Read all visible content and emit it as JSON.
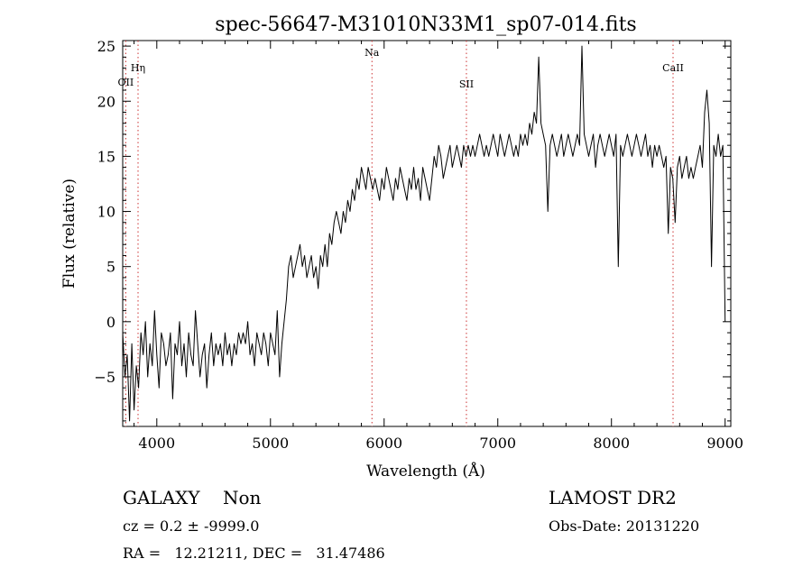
{
  "chart_data": {
    "type": "line",
    "title": "spec-56647-M31010N33M1_sp07-014.fits",
    "xlabel": "Wavelength (Å)",
    "ylabel": "Flux (relative)",
    "xlim": [
      3700,
      9050
    ],
    "ylim": [
      -9.5,
      25.5
    ],
    "x_ticks": [
      4000,
      5000,
      6000,
      7000,
      8000,
      9000
    ],
    "y_ticks": [
      -5,
      0,
      5,
      10,
      15,
      20,
      25
    ],
    "grid": false,
    "line_color": "#000000",
    "marker_color": "#cc3333",
    "line_markers": [
      {
        "label": "OII",
        "x": 3727
      },
      {
        "label": "Hη",
        "x": 3835
      },
      {
        "label": "Na",
        "x": 5893
      },
      {
        "label": "SII",
        "x": 6724
      },
      {
        "label": "CaII",
        "x": 8542
      }
    ],
    "series": [
      {
        "x": [
          3700,
          3720,
          3740,
          3760,
          3780,
          3800,
          3820,
          3840,
          3860,
          3880,
          3900,
          3920,
          3940,
          3960,
          3980,
          4000,
          4020,
          4040,
          4060,
          4080,
          4100,
          4120,
          4140,
          4160,
          4180,
          4200,
          4220,
          4240,
          4260,
          4280,
          4300,
          4320,
          4340,
          4360,
          4380,
          4400,
          4420,
          4440,
          4460,
          4480,
          4500,
          4520,
          4540,
          4560,
          4580,
          4600,
          4620,
          4640,
          4660,
          4680,
          4700,
          4720,
          4740,
          4760,
          4780,
          4800,
          4820,
          4840,
          4860,
          4880,
          4900,
          4920,
          4940,
          4960,
          4980,
          5000,
          5020,
          5040,
          5060,
          5080,
          5100,
          5120,
          5140,
          5160,
          5180,
          5200,
          5220,
          5240,
          5260,
          5280,
          5300,
          5320,
          5340,
          5360,
          5380,
          5400,
          5420,
          5440,
          5460,
          5480,
          5500,
          5520,
          5540,
          5560,
          5580,
          5600,
          5620,
          5640,
          5660,
          5680,
          5700,
          5720,
          5740,
          5760,
          5780,
          5800,
          5820,
          5840,
          5860,
          5880,
          5900,
          5920,
          5940,
          5960,
          5980,
          6000,
          6020,
          6040,
          6060,
          6080,
          6100,
          6120,
          6140,
          6160,
          6180,
          6200,
          6220,
          6240,
          6260,
          6280,
          6300,
          6320,
          6340,
          6360,
          6380,
          6400,
          6420,
          6440,
          6460,
          6480,
          6500,
          6520,
          6540,
          6560,
          6580,
          6600,
          6620,
          6640,
          6660,
          6680,
          6700,
          6720,
          6740,
          6760,
          6780,
          6800,
          6820,
          6840,
          6860,
          6880,
          6900,
          6920,
          6940,
          6960,
          6980,
          7000,
          7020,
          7040,
          7060,
          7080,
          7100,
          7120,
          7140,
          7160,
          7180,
          7200,
          7220,
          7240,
          7260,
          7280,
          7300,
          7320,
          7340,
          7360,
          7380,
          7400,
          7420,
          7440,
          7460,
          7480,
          7500,
          7520,
          7540,
          7560,
          7580,
          7600,
          7620,
          7640,
          7660,
          7680,
          7700,
          7720,
          7740,
          7760,
          7780,
          7800,
          7820,
          7840,
          7860,
          7880,
          7900,
          7920,
          7940,
          7960,
          7980,
          8000,
          8020,
          8040,
          8060,
          8080,
          8100,
          8120,
          8140,
          8160,
          8180,
          8200,
          8220,
          8240,
          8260,
          8280,
          8300,
          8320,
          8340,
          8360,
          8380,
          8400,
          8420,
          8440,
          8460,
          8480,
          8500,
          8520,
          8540,
          8560,
          8580,
          8600,
          8620,
          8640,
          8660,
          8680,
          8700,
          8720,
          8740,
          8760,
          8780,
          8800,
          8820,
          8840,
          8860,
          8880,
          8900,
          8920,
          8940,
          8960,
          8980,
          9000
        ],
        "values": [
          -1,
          -5,
          -3,
          -9,
          -2,
          -8,
          -4,
          -6,
          -1,
          -3,
          0,
          -5,
          -2,
          -4,
          1,
          -3,
          -6,
          -1,
          -2,
          -4,
          -3,
          -1,
          -7,
          -2,
          -3,
          0,
          -4,
          -2,
          -5,
          -1,
          -3,
          -4,
          1,
          -2,
          -5,
          -3,
          -2,
          -6,
          -3,
          -1,
          -4,
          -2,
          -3,
          -2,
          -4,
          -1,
          -3,
          -2,
          -4,
          -2,
          -3,
          -1,
          -2,
          -1,
          -2,
          0,
          -3,
          -2,
          -4,
          -1,
          -2,
          -3,
          -1,
          -2,
          -4,
          -1,
          -2,
          -3,
          1,
          -5,
          -2,
          0,
          2,
          5,
          6,
          4,
          5,
          6,
          7,
          5,
          6,
          4,
          5,
          6,
          4,
          5,
          3,
          6,
          5,
          7,
          5,
          8,
          7,
          9,
          10,
          9,
          8,
          10,
          9,
          11,
          10,
          12,
          11,
          13,
          12,
          14,
          13,
          12,
          14,
          13,
          12,
          13,
          12,
          11,
          13,
          12,
          14,
          13,
          12,
          11,
          13,
          12,
          14,
          13,
          12,
          11,
          13,
          12,
          14,
          12,
          13,
          11,
          14,
          13,
          12,
          11,
          13,
          15,
          14,
          16,
          15,
          13,
          14,
          15,
          16,
          14,
          15,
          16,
          15,
          14,
          16,
          15,
          16,
          15,
          16,
          15,
          16,
          17,
          16,
          15,
          16,
          15,
          16,
          17,
          16,
          15,
          17,
          16,
          15,
          16,
          17,
          16,
          15,
          16,
          15,
          17,
          16,
          17,
          16,
          18,
          17,
          19,
          18,
          24,
          18,
          17,
          16,
          10,
          16,
          17,
          16,
          15,
          16,
          17,
          15,
          16,
          17,
          16,
          15,
          16,
          17,
          16,
          25,
          17,
          16,
          15,
          16,
          17,
          14,
          16,
          17,
          16,
          15,
          16,
          17,
          16,
          15,
          17,
          5,
          16,
          15,
          16,
          17,
          16,
          15,
          16,
          17,
          16,
          15,
          16,
          17,
          15,
          16,
          14,
          16,
          15,
          16,
          15,
          14,
          15,
          8,
          14,
          13,
          9,
          14,
          15,
          13,
          14,
          15,
          13,
          14,
          13,
          14,
          15,
          16,
          14,
          19,
          21,
          18,
          5,
          16,
          15,
          17,
          15,
          16,
          0
        ]
      }
    ]
  },
  "info": {
    "class_line": "GALAXY    Non",
    "cz_line": "cz = 0.2 ± -9999.0",
    "radec_line": "RA =   12.21211, DEC =   31.47486",
    "survey": "LAMOST DR2",
    "obs_date": "Obs-Date: 20131220"
  }
}
